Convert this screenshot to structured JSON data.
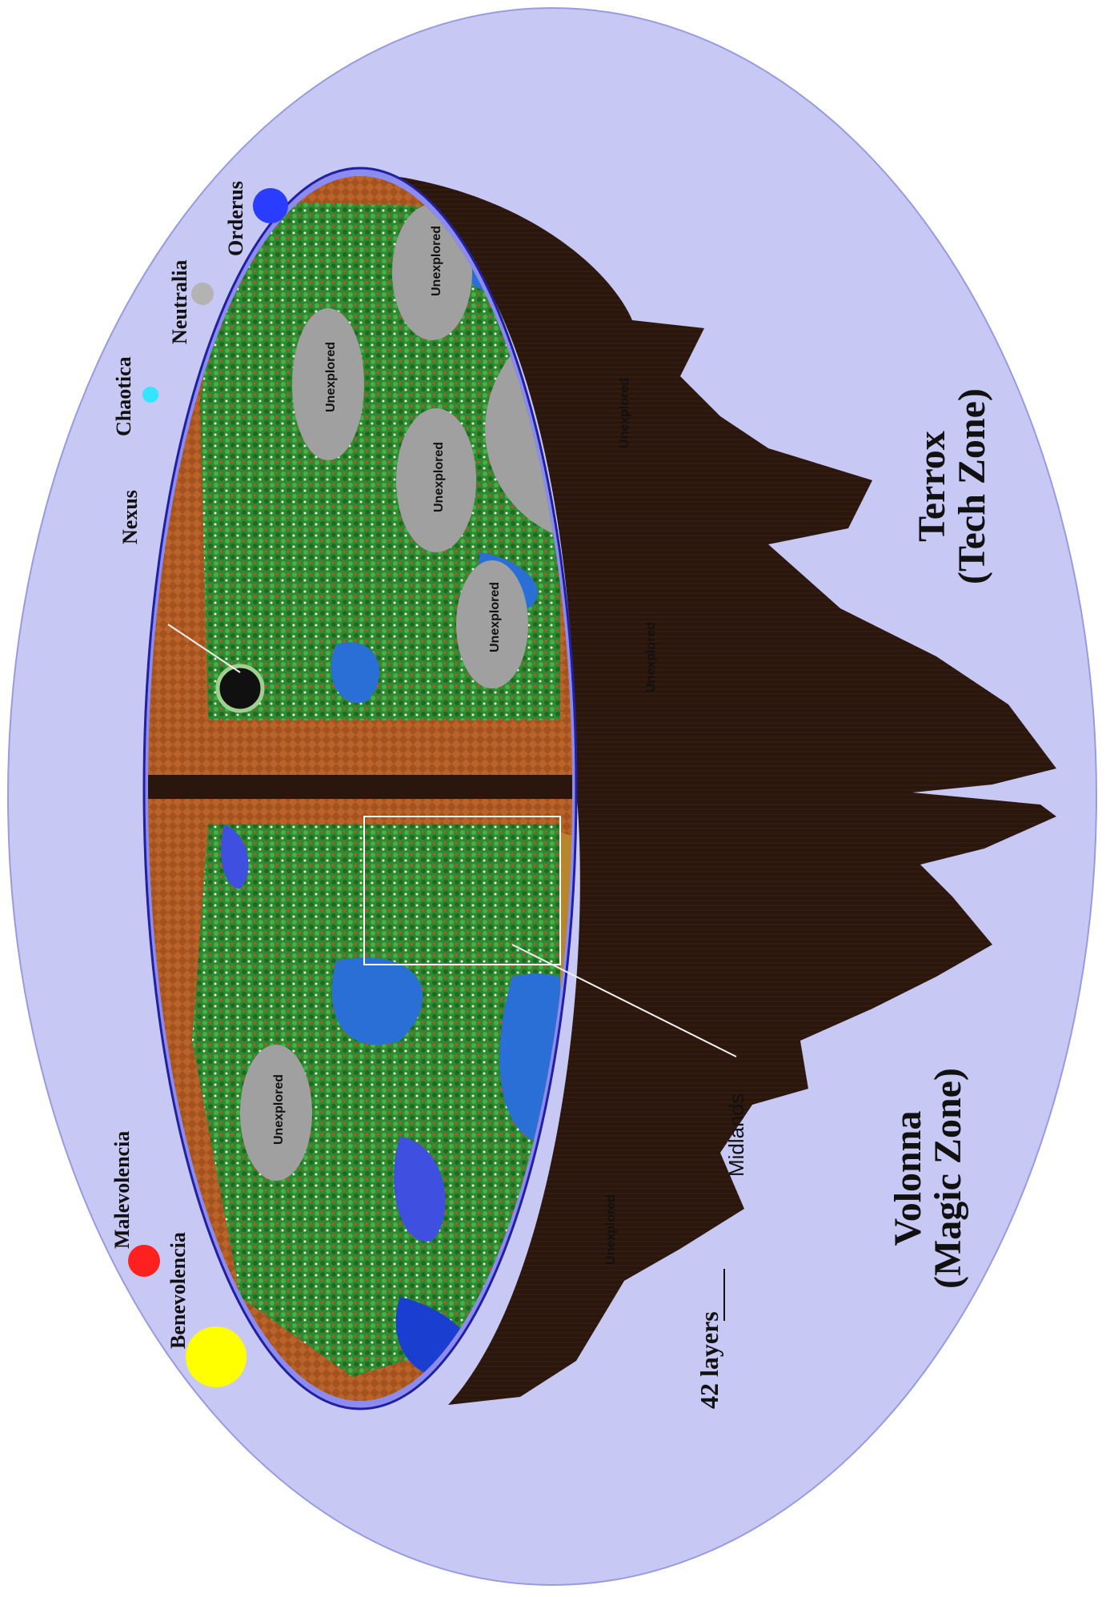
{
  "map": {
    "moons": {
      "malevolencia": {
        "label": "Malevolencia",
        "color": "#ff2020"
      },
      "benevolencia": {
        "label": "Benevolencia",
        "color": "#ffff00"
      },
      "nexus": {
        "label": "Nexus"
      },
      "chaotica": {
        "label": "Chaotica",
        "color": "#33e6ff"
      },
      "neutralia": {
        "label": "Neutralia",
        "color": "#b3b3b3"
      },
      "orderus": {
        "label": "Orderus",
        "color": "#2a3cff"
      }
    },
    "zones": {
      "volonna": {
        "name": "Volonna",
        "sub": "(Magic Zone)"
      },
      "terrox": {
        "name": "Terrox",
        "sub": "(Tech Zone)"
      }
    },
    "annotations": {
      "midlands": "Midlands",
      "layers": "42  layers"
    },
    "unexplored_label": "Unexplored",
    "colors": {
      "background_outer": "#c8c8f5",
      "sky_rim": "#8c8cf0",
      "dirt": "#a4521e",
      "forest": "#2f8a2f",
      "water": "#2a6fd6",
      "unexplored": "#a0a0a0",
      "underside": "#2a160c"
    }
  }
}
